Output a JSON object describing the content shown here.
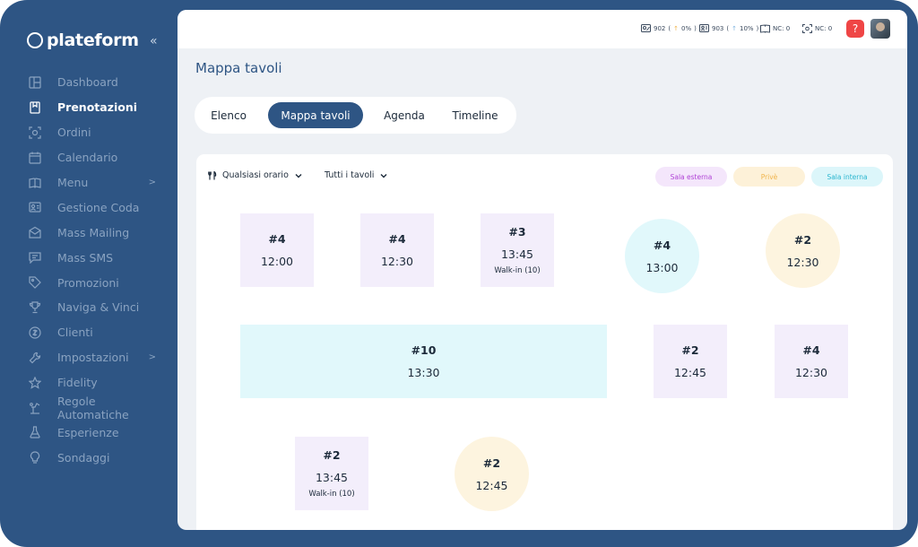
{
  "brand": {
    "name": "plateform",
    "collapse_icon": "«"
  },
  "sidebar": {
    "items": [
      {
        "label": "Dashboard",
        "icon": "dashboard-icon"
      },
      {
        "label": "Prenotazioni",
        "icon": "bookmark-icon",
        "active": true
      },
      {
        "label": "Ordini",
        "icon": "scan-icon"
      },
      {
        "label": "Calendario",
        "icon": "calendar-icon"
      },
      {
        "label": "Menu",
        "icon": "book-icon",
        "arrow": ">"
      },
      {
        "label": "Gestione Coda",
        "icon": "queue-icon"
      },
      {
        "label": "Mass Mailing",
        "icon": "mail-icon"
      },
      {
        "label": "Mass SMS",
        "icon": "sms-icon"
      },
      {
        "label": "Promozioni",
        "icon": "tag-icon"
      },
      {
        "label": "Naviga & Vinci",
        "icon": "trophy-icon"
      },
      {
        "label": "Clienti",
        "icon": "clients-icon"
      },
      {
        "label": "Impostazioni",
        "icon": "wrench-icon",
        "arrow": ">"
      },
      {
        "label": "Fidelity",
        "icon": "star-icon"
      },
      {
        "label": "Regole Automatiche",
        "icon": "rules-icon"
      },
      {
        "label": "Esperienze",
        "icon": "flask-icon"
      },
      {
        "label": "Sondaggi",
        "icon": "bulb-icon"
      }
    ]
  },
  "topbar": {
    "stat1": {
      "value": "902",
      "change": "0%"
    },
    "stat2": {
      "value": "903",
      "change": "10%"
    },
    "stat3": {
      "label": "NC: 0"
    },
    "stat4": {
      "label": "NC: 0"
    },
    "help": "?"
  },
  "page": {
    "title": "Mappa tavoli"
  },
  "tabs": [
    {
      "label": "Elenco"
    },
    {
      "label": "Mappa tavoli",
      "active": true
    },
    {
      "label": "Agenda"
    },
    {
      "label": "Timeline"
    }
  ],
  "filters": {
    "time": "Qualsiasi orario",
    "tables": "Tutti i tavoli"
  },
  "legend": [
    {
      "label": "Sala esterna",
      "bg": "#f4e6fb",
      "fg": "#b043d6"
    },
    {
      "label": "Privè",
      "bg": "#fdf1d8",
      "fg": "#f0b44c"
    },
    {
      "label": "Sala interna",
      "bg": "#dcf6fa",
      "fg": "#2bb6cf"
    }
  ],
  "tables": [
    {
      "num": "#4",
      "time": "12:00",
      "walkin": ""
    },
    {
      "num": "#4",
      "time": "12:30",
      "walkin": ""
    },
    {
      "num": "#3",
      "time": "13:45",
      "walkin": "Walk-in (10)"
    },
    {
      "num": "#4",
      "time": "13:00",
      "walkin": ""
    },
    {
      "num": "#2",
      "time": "12:30",
      "walkin": ""
    },
    {
      "num": "#10",
      "time": "13:30",
      "walkin": ""
    },
    {
      "num": "#2",
      "time": "12:45",
      "walkin": ""
    },
    {
      "num": "#4",
      "time": "12:30",
      "walkin": ""
    },
    {
      "num": "#2",
      "time": "13:45",
      "walkin": "Walk-in (10)"
    },
    {
      "num": "#2",
      "time": "12:45",
      "walkin": ""
    }
  ]
}
